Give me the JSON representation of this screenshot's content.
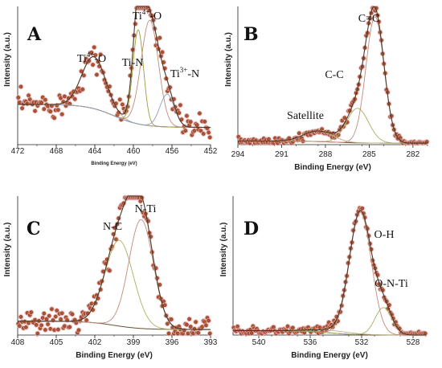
{
  "chart_data": [
    {
      "type": "scatter",
      "panel_label": "A",
      "xlabel": "Binding Energy (eV)",
      "ylabel": "Intensity (a.u.)",
      "xlim": [
        472,
        452
      ],
      "x_ticks": [
        "472",
        "468",
        "464",
        "460",
        "456",
        "452"
      ],
      "peak_labels": [
        {
          "sup": "4+",
          "sym": "Ti",
          "suffix": "-O",
          "x": 464.3
        },
        {
          "sup": "",
          "sym": "Ti-N",
          "suffix": "",
          "x": 460.6
        },
        {
          "sup": "4+",
          "sym": "Ti",
          "suffix": "-O",
          "x": 458.5
        },
        {
          "sup": "3+",
          "sym": "Ti",
          "suffix": "-N",
          "x": 455.8
        }
      ],
      "background": {
        "start": 1.05,
        "end": 0.45
      },
      "components": [
        {
          "center": 464.1,
          "height": 1.35,
          "width": 1.25,
          "color": "#b9b08a"
        },
        {
          "center": 459.5,
          "height": 2.45,
          "width": 0.55,
          "color": "#9c9c3a"
        },
        {
          "center": 458.3,
          "height": 2.75,
          "width": 0.9,
          "color": "#c28a7a"
        },
        {
          "center": 456.5,
          "height": 0.85,
          "width": 0.75,
          "color": "#8fa0c0"
        }
      ],
      "ylim": [
        0,
        3.6
      ],
      "envelope_color": "#4a3826"
    },
    {
      "type": "scatter",
      "panel_label": "B",
      "xlabel": "Binding Energy (eV)",
      "ylabel": "Intensity (a.u.)",
      "xlim": [
        294,
        281
      ],
      "x_ticks": [
        "294",
        "291",
        "288",
        "285",
        "282"
      ],
      "peak_labels": [
        {
          "sup": "",
          "sym": "C=C",
          "suffix": "",
          "x": 284.7
        },
        {
          "sup": "",
          "sym": "C-C",
          "suffix": "",
          "x": 286.9
        },
        {
          "sup": "",
          "sym": "Satellite",
          "suffix": "",
          "x": 289.4
        }
      ],
      "background": {
        "start": 0.12,
        "end": 0.05
      },
      "components": [
        {
          "center": 288.5,
          "height": 0.35,
          "width": 1.0,
          "color": "#b9b08a"
        },
        {
          "center": 285.8,
          "height": 1.15,
          "width": 0.75,
          "color": "#a6b060"
        },
        {
          "center": 284.6,
          "height": 4.2,
          "width": 0.62,
          "color": "#c28a7a"
        }
      ],
      "ylim": [
        0,
        4.6
      ],
      "envelope_color": "#4a3826"
    },
    {
      "type": "scatter",
      "panel_label": "C",
      "xlabel": "Binding Energy (eV)",
      "ylabel": "Intensity (a.u.)",
      "xlim": [
        408,
        393
      ],
      "x_ticks": [
        "408",
        "405",
        "402",
        "399",
        "396",
        "393"
      ],
      "peak_labels": [
        {
          "sup": "",
          "sym": "N-C",
          "suffix": "",
          "x": 401.0
        },
        {
          "sup": "",
          "sym": "N-Ti",
          "suffix": "",
          "x": 398.5
        }
      ],
      "background": {
        "start": 0.3,
        "end": 0.12
      },
      "components": [
        {
          "center": 400.1,
          "height": 1.85,
          "width": 1.1,
          "color": "#b0b060"
        },
        {
          "center": 398.4,
          "height": 2.35,
          "width": 0.95,
          "color": "#c28a7a"
        }
      ],
      "ylim": [
        0,
        3.0
      ],
      "envelope_color": "#4a3826"
    },
    {
      "type": "scatter",
      "panel_label": "D",
      "xlabel": "Binding Energy (eV)",
      "ylabel": "Intensity (a.u.)",
      "xlim": [
        542,
        527
      ],
      "x_ticks": [
        "540",
        "536",
        "532",
        "528"
      ],
      "peak_labels": [
        {
          "sup": "",
          "sym": "O-H",
          "suffix": "",
          "x": 530.8
        },
        {
          "sup": "",
          "sym": "O-N-Ti",
          "suffix": "",
          "x": 529.2
        }
      ],
      "background": {
        "start": 0.12,
        "end": 0.0
      },
      "components": [
        {
          "center": 534.5,
          "height": 0.07,
          "width": 1.6,
          "color": "#b9b08a"
        },
        {
          "center": 532.1,
          "height": 3.35,
          "width": 0.85,
          "color": "#c28a7a"
        },
        {
          "center": 530.3,
          "height": 0.75,
          "width": 0.65,
          "color": "#a6b060"
        }
      ],
      "ylim": [
        0,
        3.8
      ],
      "envelope_color": "#4a3826"
    }
  ],
  "colors": {
    "points_fill": "#b0522e",
    "points_stroke": "#5a2a14",
    "points_halo": "#e9a9a9",
    "background_line": "#6b4f2e",
    "axis": "#222222"
  }
}
